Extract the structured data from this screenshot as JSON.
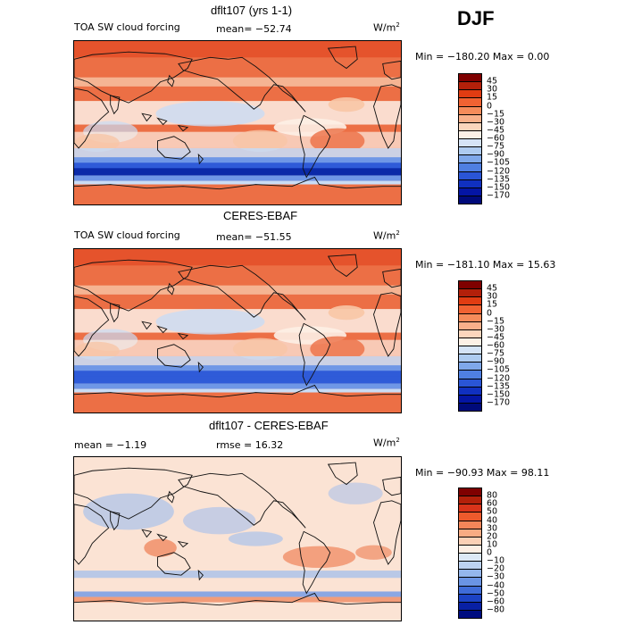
{
  "season": "DJF",
  "panels": [
    {
      "title": "dflt107 (yrs 1-1)",
      "left_label": "TOA SW cloud forcing",
      "mean_text": "mean= −52.74",
      "units": "W/m",
      "units_sup": "2",
      "minmax_text": "Min = −180.20 Max =    0.00",
      "colorbar": {
        "colors": [
          "#7f0000",
          "#b3200a",
          "#e03c12",
          "#f06232",
          "#f58b5a",
          "#f8b08a",
          "#fbd6bd",
          "#fdf0e6",
          "#d5e3f6",
          "#aecbf0",
          "#7fa8ea",
          "#4f7fe2",
          "#2a55d6",
          "#1030c0",
          "#0415a4",
          "#000a7a"
        ],
        "labels": [
          "45",
          "30",
          "15",
          "0",
          "−15",
          "−30",
          "−45",
          "−60",
          "−75",
          "−90",
          "−105",
          "−120",
          "−135",
          "−150",
          "−170"
        ]
      }
    },
    {
      "title": "CERES-EBAF",
      "left_label": "TOA SW cloud forcing",
      "mean_text": "mean= −51.55",
      "units": "W/m",
      "units_sup": "2",
      "minmax_text": "Min = −181.10 Max =  15.63",
      "colorbar": {
        "colors": [
          "#7f0000",
          "#b3200a",
          "#e03c12",
          "#f06232",
          "#f58b5a",
          "#f8b08a",
          "#fbd6bd",
          "#fdf0e6",
          "#d5e3f6",
          "#aecbf0",
          "#7fa8ea",
          "#4f7fe2",
          "#2a55d6",
          "#1030c0",
          "#0415a4",
          "#000a7a"
        ],
        "labels": [
          "45",
          "30",
          "15",
          "0",
          "−15",
          "−30",
          "−45",
          "−60",
          "−75",
          "−90",
          "−105",
          "−120",
          "−135",
          "−150",
          "−170"
        ]
      }
    },
    {
      "title": "dflt107 - CERES-EBAF",
      "mean_text": "mean =   −1.19",
      "rmse_text": "rmse =   16.32",
      "units": "W/m",
      "units_sup": "2",
      "minmax_text": "Min = −90.93 Max =   98.11",
      "colorbar": {
        "colors": [
          "#7f0000",
          "#b3200a",
          "#d8331a",
          "#ee5a2c",
          "#f58659",
          "#f8ab83",
          "#fbd0b6",
          "#fdeee4",
          "#dde9f7",
          "#bdd3f2",
          "#94b6ec",
          "#6a94e4",
          "#3f6cd8",
          "#1c43c4",
          "#0820a4",
          "#000d80"
        ],
        "labels": [
          "80",
          "60",
          "50",
          "40",
          "30",
          "20",
          "10",
          "0",
          "−10",
          "−20",
          "−30",
          "−40",
          "−50",
          "−60",
          "−80"
        ]
      }
    }
  ],
  "map_palette": {
    "red_bg": "#ec6f45",
    "red_dark": "#e5532c",
    "peach": "#f8c6a6",
    "pale": "#fdf0e6",
    "light_blue": "#c9dcf5",
    "mid_blue": "#6f97e6",
    "blue": "#2f5bd8",
    "deep_blue": "#0b2aa8",
    "diff_bg": "#fbe3d4",
    "diff_blue": "#9dbcee",
    "diff_red": "#f08a62"
  }
}
